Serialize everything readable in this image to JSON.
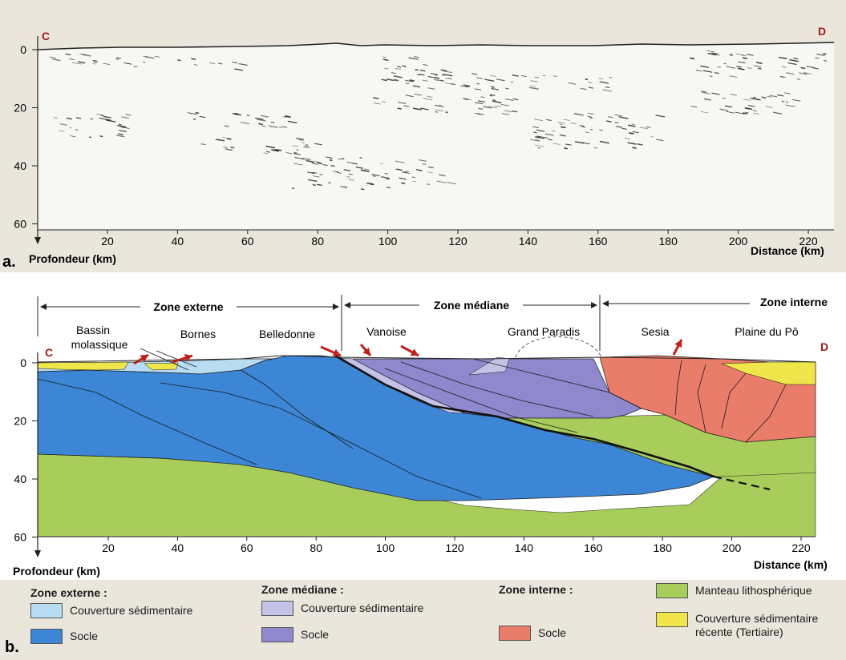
{
  "colors": {
    "ext_cover": "#b8ddf3",
    "ext_socle": "#3d86d6",
    "med_cover": "#c4c2e6",
    "med_socle": "#8f88cc",
    "int_socle": "#ea7d6a",
    "mantle": "#a9cd5b",
    "tertiary": "#f0e64b",
    "arrow": "#c0201a",
    "endpoint": "#a01818"
  },
  "panel_a": {
    "label": "a.",
    "point_left": "C",
    "point_right": "D",
    "y_title": "Profondeur (km)",
    "x_title": "Distance (km)",
    "y_ticks": [
      "0",
      "20",
      "40",
      "60"
    ],
    "x_ticks": [
      "20",
      "40",
      "60",
      "80",
      "100",
      "120",
      "140",
      "160",
      "180",
      "200",
      "220"
    ]
  },
  "panel_b": {
    "label": "b.",
    "point_left": "C",
    "point_right": "D",
    "y_title": "Profondeur (km)",
    "x_title": "Distance (km)",
    "y_ticks": [
      "0",
      "20",
      "40",
      "60"
    ],
    "x_ticks": [
      "20",
      "40",
      "60",
      "80",
      "100",
      "120",
      "140",
      "160",
      "180",
      "200",
      "220"
    ],
    "zones": [
      "Zone externe",
      "Zone médiane",
      "Zone interne"
    ],
    "places": {
      "bassin_1": "Bassin",
      "bassin_2": "molassique",
      "bornes": "Bornes",
      "belledonne": "Belledonne",
      "vanoise": "Vanoise",
      "grand_paradis": "Grand Paradis",
      "sesia": "Sesia",
      "plaine": "Plaine du Pô"
    }
  },
  "legend": {
    "externe_title": "Zone externe :",
    "externe_items": [
      "Couverture sédimentaire",
      "Socle"
    ],
    "mediane_title": "Zone médiane :",
    "mediane_items": [
      "Couverture sédimentaire",
      "Socle"
    ],
    "interne_title": "Zone interne :",
    "interne_items": [
      "Socle"
    ],
    "other_items": [
      "Manteau lithosphérique",
      "Couverture sédimentaire",
      "récente (Tertiaire)"
    ]
  }
}
